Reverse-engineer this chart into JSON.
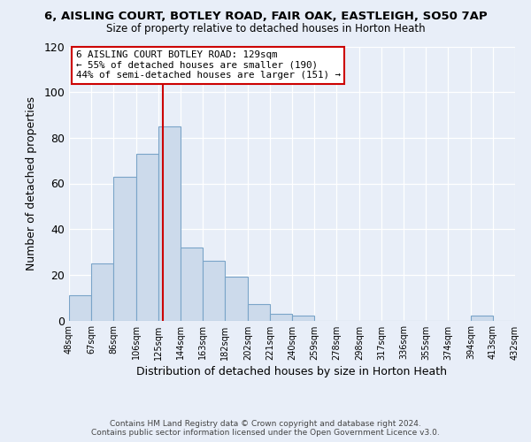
{
  "title": "6, AISLING COURT, BOTLEY ROAD, FAIR OAK, EASTLEIGH, SO50 7AP",
  "subtitle": "Size of property relative to detached houses in Horton Heath",
  "xlabel": "Distribution of detached houses by size in Horton Heath",
  "ylabel": "Number of detached properties",
  "bar_color": "#ccdaeb",
  "bar_edge_color": "#7aa4c8",
  "background_color": "#e8eef8",
  "plot_bg_color": "#e8eef8",
  "bin_edges": [
    48,
    67,
    86,
    106,
    125,
    144,
    163,
    182,
    202,
    221,
    240,
    259,
    278,
    298,
    317,
    336,
    355,
    374,
    394,
    413,
    432
  ],
  "bin_labels": [
    "48sqm",
    "67sqm",
    "86sqm",
    "106sqm",
    "125sqm",
    "144sqm",
    "163sqm",
    "182sqm",
    "202sqm",
    "221sqm",
    "240sqm",
    "259sqm",
    "278sqm",
    "298sqm",
    "317sqm",
    "336sqm",
    "355sqm",
    "374sqm",
    "394sqm",
    "413sqm",
    "432sqm"
  ],
  "counts": [
    11,
    25,
    63,
    73,
    85,
    32,
    26,
    19,
    7,
    3,
    2,
    0,
    0,
    0,
    0,
    0,
    0,
    0,
    2,
    0
  ],
  "vline_x": 129,
  "vline_color": "#cc0000",
  "annotation_line1": "6 AISLING COURT BOTLEY ROAD: 129sqm",
  "annotation_line2": "← 55% of detached houses are smaller (190)",
  "annotation_line3": "44% of semi-detached houses are larger (151) →",
  "annotation_box_color": "#ffffff",
  "annotation_box_edge_color": "#cc0000",
  "ylim": [
    0,
    120
  ],
  "yticks": [
    0,
    20,
    40,
    60,
    80,
    100,
    120
  ],
  "footnote1": "Contains HM Land Registry data © Crown copyright and database right 2024.",
  "footnote2": "Contains public sector information licensed under the Open Government Licence v3.0."
}
